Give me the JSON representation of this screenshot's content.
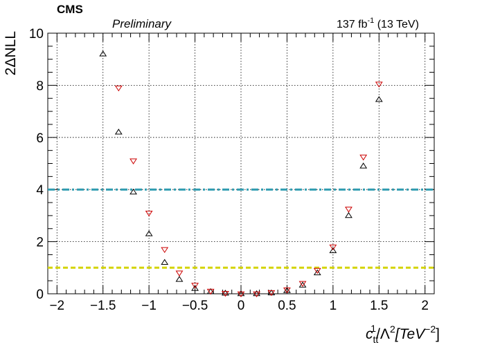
{
  "header": {
    "experiment": "CMS",
    "status": "Preliminary",
    "lumi": "137 fb",
    "lumi_exp": "-1",
    "energy": " (13 TeV)"
  },
  "axes": {
    "ylabel": "2ΔNLL",
    "xlabel_main": "c",
    "xlabel_sub": "tt",
    "xlabel_sup": "1",
    "xlabel_rest": "/Λ",
    "xlabel_sup2": "2",
    "xlabel_unit": "[TeV",
    "xlabel_unit_exp": "−2",
    "xlabel_close": "]"
  },
  "colors": {
    "black_series": "#000000",
    "red_series": "#cc0000",
    "line_4": "#2e9bb0",
    "line_1": "#d4d400",
    "grid": "#000000"
  },
  "chart_data": {
    "type": "scatter",
    "xlim": [
      -2.1,
      2.1
    ],
    "ylim": [
      0,
      10
    ],
    "xticks": [
      -2,
      -1.5,
      -1,
      -0.5,
      0,
      0.5,
      1,
      1.5,
      2
    ],
    "xtick_labels": [
      "−2",
      "−1.5",
      "−1",
      "−0.5",
      "0",
      "0.5",
      "1",
      "1.5",
      "2"
    ],
    "yticks": [
      0,
      2,
      4,
      6,
      8,
      10
    ],
    "ytick_labels": [
      "0",
      "2",
      "4",
      "6",
      "8",
      "10"
    ],
    "grid": true,
    "hlines": [
      {
        "y": 4,
        "style": "dash-dot",
        "color": "#2e9bb0"
      },
      {
        "y": 1,
        "style": "dashed",
        "color": "#d4d400"
      }
    ],
    "series": [
      {
        "marker": "triangle-up",
        "color": "#000000",
        "x": [
          -1.5,
          -1.33,
          -1.17,
          -1.0,
          -0.83,
          -0.67,
          -0.5,
          -0.33,
          -0.17,
          0.0,
          0.17,
          0.33,
          0.5,
          0.67,
          0.83,
          1.0,
          1.17,
          1.33,
          1.5
        ],
        "y": [
          9.2,
          6.2,
          3.9,
          2.3,
          1.2,
          0.55,
          0.2,
          0.08,
          0.02,
          0.0,
          0.0,
          0.03,
          0.12,
          0.33,
          0.8,
          1.65,
          3.0,
          4.9,
          7.45
        ]
      },
      {
        "marker": "triangle-down",
        "color": "#cc0000",
        "x": [
          -1.33,
          -1.17,
          -1.0,
          -0.83,
          -0.67,
          -0.5,
          -0.33,
          -0.17,
          0.0,
          0.17,
          0.33,
          0.5,
          0.67,
          0.83,
          1.0,
          1.17,
          1.33,
          1.5
        ],
        "y": [
          7.9,
          5.1,
          3.1,
          1.7,
          0.8,
          0.33,
          0.1,
          0.02,
          0.0,
          0.0,
          0.05,
          0.15,
          0.4,
          0.9,
          1.8,
          3.25,
          5.25,
          8.05
        ]
      }
    ]
  }
}
